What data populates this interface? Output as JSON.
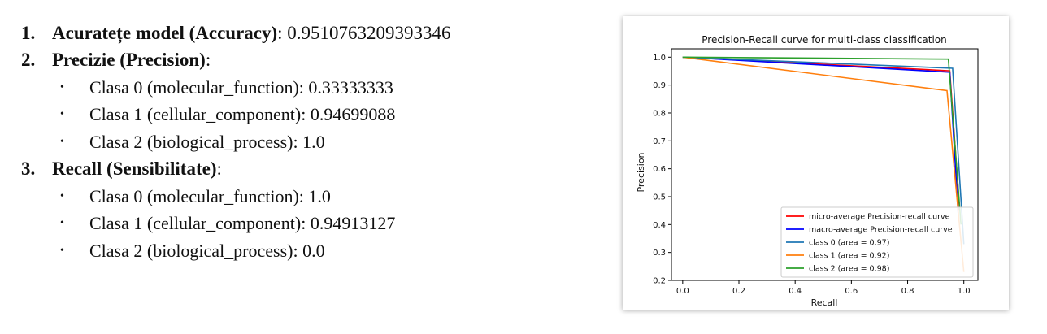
{
  "document": {
    "items": [
      {
        "number": "1.",
        "label": "Acuratețe model (Accuracy)",
        "value": ": 0.9510763209393346",
        "subitems": []
      },
      {
        "number": "2.",
        "label": "Precizie (Precision)",
        "value": ":",
        "subitems": [
          "Clasa 0 (molecular_function): 0.33333333",
          "Clasa 1 (cellular_component): 0.94699088",
          "Clasa 2 (biological_process): 1.0"
        ]
      },
      {
        "number": "3.",
        "label": "Recall (Sensibilitate)",
        "value": ":",
        "subitems": [
          "Clasa 0 (molecular_function): 1.0",
          "Clasa 1 (cellular_component): 0.94913127",
          "Clasa 2 (biological_process): 0.0"
        ]
      }
    ],
    "bullet": "•"
  },
  "chart_data": {
    "type": "line",
    "title": "Precision-Recall curve for multi-class classification",
    "xlabel": "Recall",
    "ylabel": "Precision",
    "xlim": [
      -0.04,
      1.05
    ],
    "ylim": [
      0.2,
      1.03
    ],
    "xticks": [
      "0.0",
      "0.2",
      "0.4",
      "0.6",
      "0.8",
      "1.0"
    ],
    "yticks": [
      "0.2",
      "0.3",
      "0.4",
      "0.5",
      "0.6",
      "0.7",
      "0.8",
      "0.9",
      "1.0"
    ],
    "legend_position": "lower-right",
    "series": [
      {
        "name": "micro-average Precision-recall curve",
        "color": "#ff0000",
        "x": [
          0.0,
          0.95,
          0.985
        ],
        "y": [
          1.0,
          0.951,
          0.45
        ]
      },
      {
        "name": "macro-average Precision-recall curve",
        "color": "#0000ff",
        "x": [
          0.0,
          0.95,
          0.98
        ],
        "y": [
          1.0,
          0.946,
          0.44
        ]
      },
      {
        "name": "class 0 (area = 0.97)",
        "color": "#1f77b4",
        "x": [
          0.0,
          0.96,
          1.0
        ],
        "y": [
          1.0,
          0.96,
          0.33
        ]
      },
      {
        "name": "class 1 (area = 0.92)",
        "color": "#ff7f0e",
        "x": [
          0.0,
          0.94,
          1.0
        ],
        "y": [
          1.0,
          0.88,
          0.23
        ]
      },
      {
        "name": "class 2 (area = 0.98)",
        "color": "#2ca02c",
        "x": [
          0.0,
          0.945,
          0.99
        ],
        "y": [
          1.0,
          0.993,
          0.4
        ]
      }
    ]
  }
}
